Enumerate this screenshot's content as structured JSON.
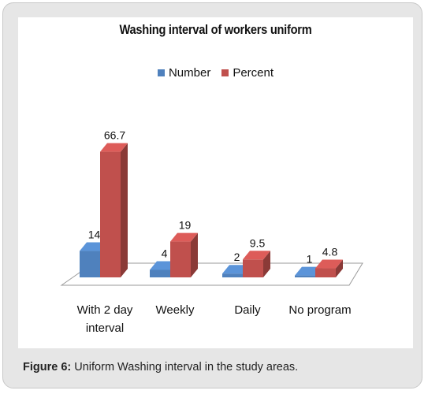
{
  "chart_data": {
    "type": "bar",
    "title": "Washing interval of workers uniform",
    "categories": [
      "With 2 day interval",
      "Weekly",
      "Daily",
      "No program"
    ],
    "series": [
      {
        "name": "Number",
        "values": [
          14,
          4,
          2,
          1
        ],
        "color": "#4f81bd"
      },
      {
        "name": "Percent",
        "values": [
          66.7,
          19,
          9.5,
          4.8
        ],
        "color": "#c0504d"
      }
    ],
    "data_labels": [
      [
        "14",
        "4",
        "2",
        "1"
      ],
      [
        "66.7",
        "19",
        "9.5",
        "4.8"
      ]
    ],
    "legend_position": "top",
    "style": "3d-column",
    "grid": false
  },
  "category_label_lines": [
    [
      "With 2 day",
      "interval"
    ],
    [
      "Weekly"
    ],
    [
      "Daily"
    ],
    [
      "No program"
    ]
  ],
  "caption": {
    "label": "Figure 6:",
    "text": " Uniform Washing interval in the study areas."
  }
}
